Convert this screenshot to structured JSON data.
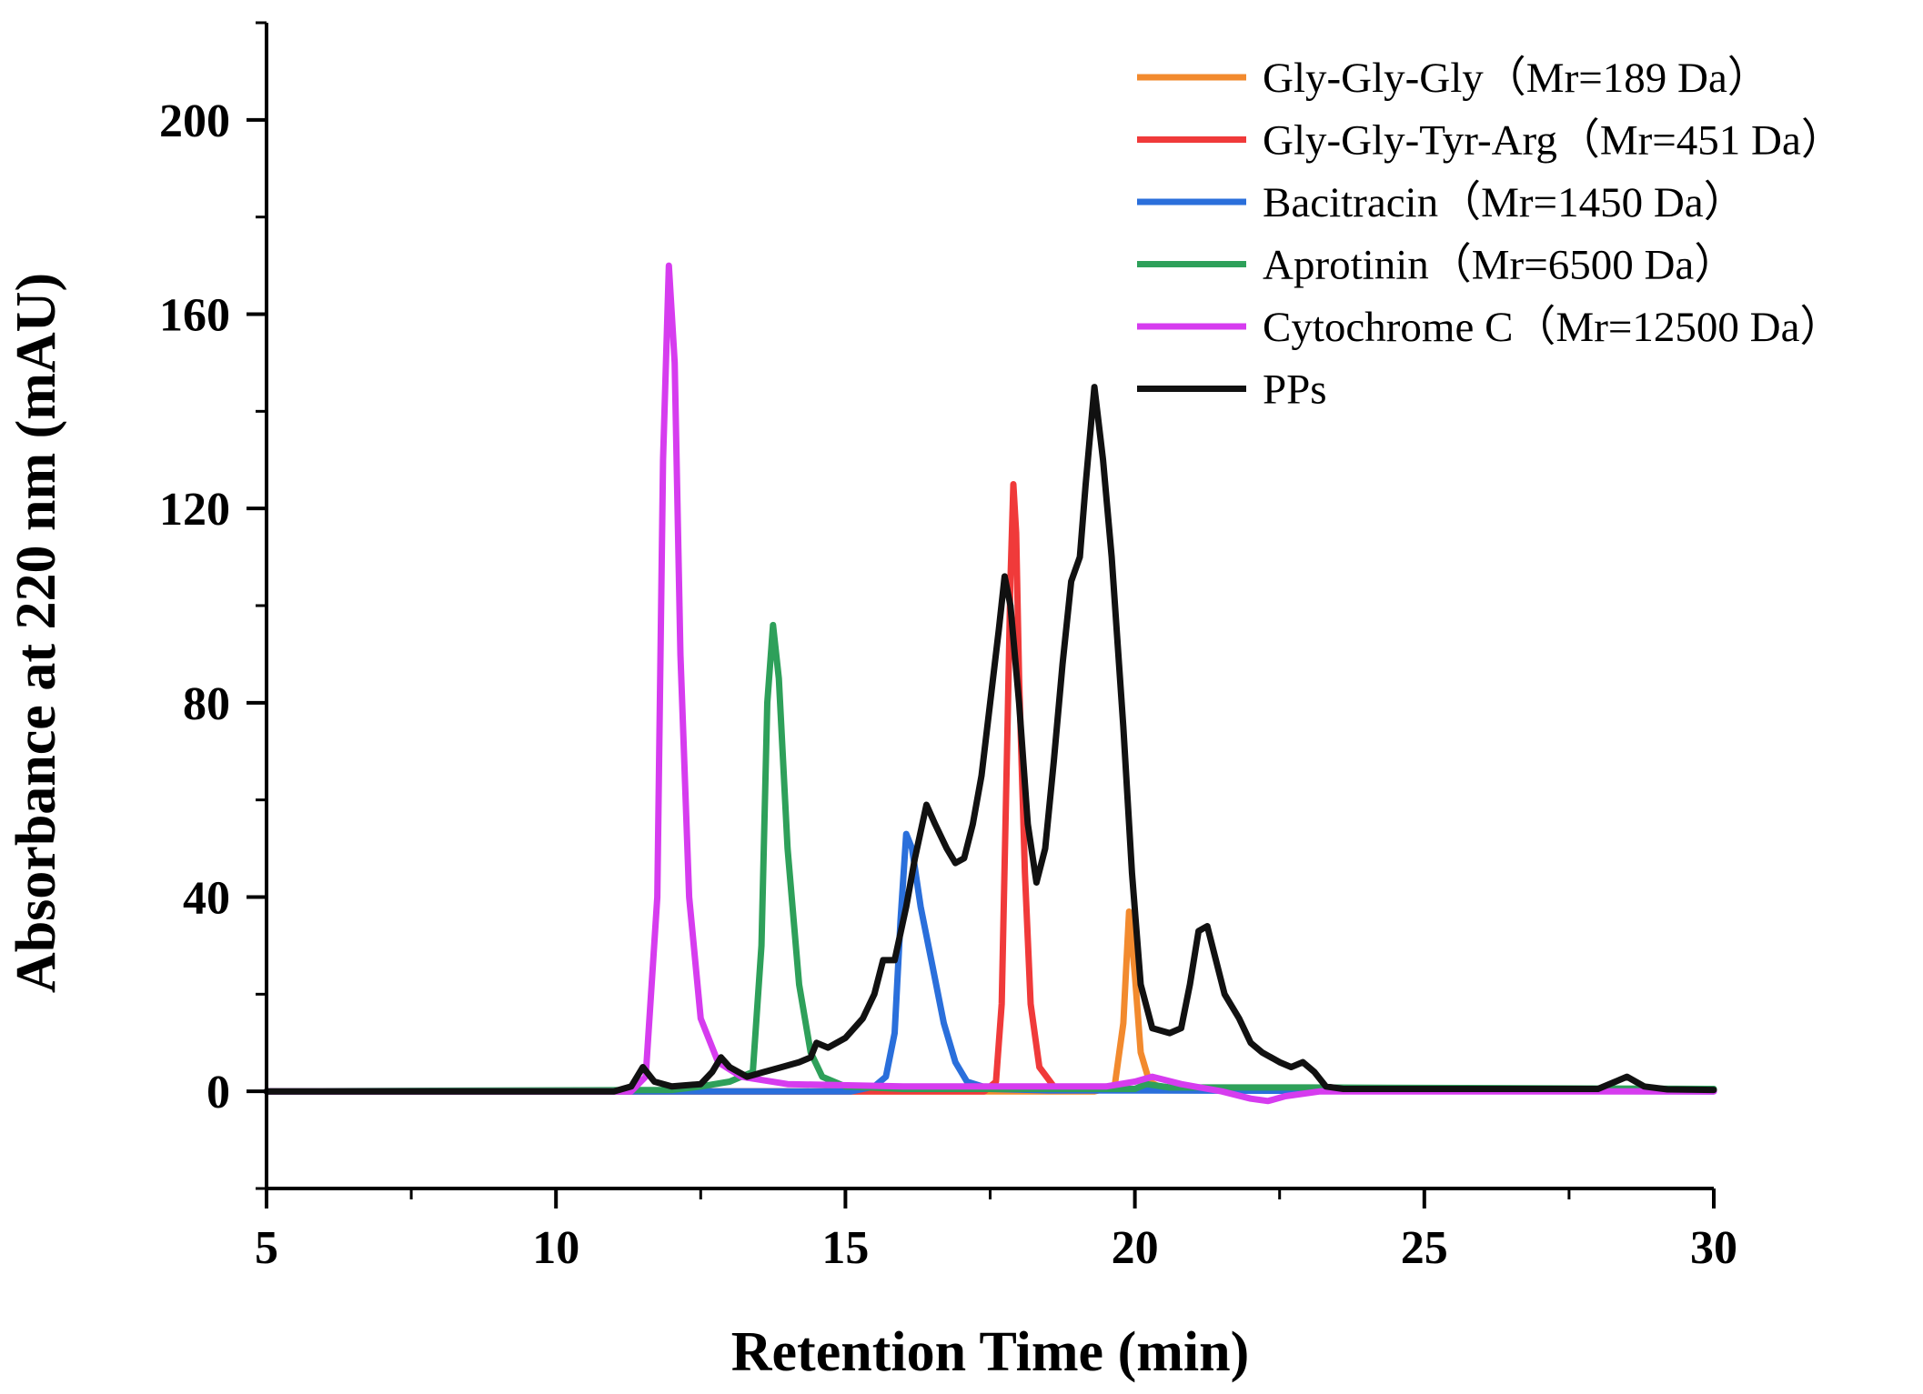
{
  "chart_data": {
    "type": "line",
    "title": "",
    "xlabel": "Retention Time (min)",
    "ylabel": "Absorbance at 220 nm (mAU)",
    "xlim": [
      5,
      30
    ],
    "ylim": [
      -20,
      220
    ],
    "xticks": [
      5,
      10,
      15,
      20,
      25,
      30
    ],
    "xticklabels": [
      "5",
      "10",
      "15",
      "20",
      "25",
      "30"
    ],
    "yticks": [
      0,
      40,
      80,
      120,
      160,
      200
    ],
    "yticklabels": [
      "0",
      "40",
      "80",
      "120",
      "160",
      "200"
    ],
    "grid": false,
    "legend_position": "top-right",
    "series": [
      {
        "name": "Gly-Gly-Gly（Mr=189 Da）",
        "color": "#F28A2E",
        "points": [
          [
            5,
            0
          ],
          [
            19.3,
            0
          ],
          [
            19.65,
            1
          ],
          [
            19.8,
            14
          ],
          [
            19.9,
            37
          ],
          [
            20.0,
            24
          ],
          [
            20.1,
            8
          ],
          [
            20.25,
            2
          ],
          [
            20.5,
            0.5
          ],
          [
            30,
            0.3
          ]
        ]
      },
      {
        "name": "Gly-Gly-Tyr-Arg（Mr=451 Da）",
        "color": "#F03A3A",
        "points": [
          [
            5,
            0
          ],
          [
            17.4,
            0
          ],
          [
            17.6,
            2
          ],
          [
            17.7,
            18
          ],
          [
            17.8,
            75
          ],
          [
            17.85,
            105
          ],
          [
            17.9,
            125
          ],
          [
            17.95,
            115
          ],
          [
            18.0,
            85
          ],
          [
            18.1,
            45
          ],
          [
            18.2,
            18
          ],
          [
            18.35,
            5
          ],
          [
            18.6,
            1
          ],
          [
            19.0,
            0.3
          ],
          [
            30,
            0.2
          ]
        ]
      },
      {
        "name": "Bacitracin（Mr=1450 Da）",
        "color": "#2A6FDB",
        "points": [
          [
            5,
            0
          ],
          [
            15.1,
            0
          ],
          [
            15.5,
            1
          ],
          [
            15.7,
            3
          ],
          [
            15.85,
            12
          ],
          [
            15.95,
            35
          ],
          [
            16.05,
            53
          ],
          [
            16.15,
            50
          ],
          [
            16.3,
            38
          ],
          [
            16.5,
            26
          ],
          [
            16.7,
            14
          ],
          [
            16.9,
            6
          ],
          [
            17.1,
            2
          ],
          [
            17.5,
            0.5
          ],
          [
            18.5,
            0.2
          ],
          [
            30,
            0
          ]
        ]
      },
      {
        "name": "Aprotinin（Mr=6500 Da）",
        "color": "#2EA05A",
        "points": [
          [
            5,
            0
          ],
          [
            12.0,
            0.3
          ],
          [
            12.5,
            1
          ],
          [
            13.0,
            2
          ],
          [
            13.4,
            4
          ],
          [
            13.55,
            30
          ],
          [
            13.65,
            80
          ],
          [
            13.75,
            96
          ],
          [
            13.85,
            85
          ],
          [
            14.0,
            50
          ],
          [
            14.2,
            22
          ],
          [
            14.4,
            8
          ],
          [
            14.6,
            3
          ],
          [
            15.0,
            1
          ],
          [
            16,
            0.5
          ],
          [
            20.0,
            0.5
          ],
          [
            20.2,
            1.5
          ],
          [
            20.6,
            0.8
          ],
          [
            23.0,
            0.8
          ],
          [
            30,
            0.5
          ]
        ]
      },
      {
        "name": "Cytochrome C（Mr=12500 Da）",
        "color": "#D63CEF",
        "points": [
          [
            5,
            0
          ],
          [
            11.3,
            0
          ],
          [
            11.55,
            3
          ],
          [
            11.75,
            40
          ],
          [
            11.85,
            130
          ],
          [
            11.95,
            170
          ],
          [
            12.05,
            150
          ],
          [
            12.15,
            90
          ],
          [
            12.3,
            40
          ],
          [
            12.5,
            15
          ],
          [
            12.8,
            6
          ],
          [
            13.2,
            3
          ],
          [
            14,
            1.5
          ],
          [
            16,
            1
          ],
          [
            18,
            1
          ],
          [
            19.5,
            1
          ],
          [
            20.0,
            2
          ],
          [
            20.3,
            3
          ],
          [
            20.8,
            1.5
          ],
          [
            21.5,
            0
          ],
          [
            22.0,
            -1.5
          ],
          [
            22.3,
            -2
          ],
          [
            22.6,
            -1
          ],
          [
            23.2,
            0
          ],
          [
            30,
            0
          ]
        ]
      },
      {
        "name": "PPs",
        "color": "#111111",
        "points": [
          [
            5,
            0
          ],
          [
            11.0,
            0
          ],
          [
            11.3,
            1
          ],
          [
            11.5,
            5
          ],
          [
            11.7,
            2
          ],
          [
            12.0,
            1
          ],
          [
            12.5,
            1.5
          ],
          [
            12.7,
            4
          ],
          [
            12.85,
            7
          ],
          [
            13.0,
            5
          ],
          [
            13.3,
            3
          ],
          [
            13.6,
            4
          ],
          [
            13.9,
            5
          ],
          [
            14.2,
            6
          ],
          [
            14.4,
            7
          ],
          [
            14.5,
            10
          ],
          [
            14.7,
            9
          ],
          [
            15.0,
            11
          ],
          [
            15.3,
            15
          ],
          [
            15.5,
            20
          ],
          [
            15.65,
            27
          ],
          [
            15.85,
            27
          ],
          [
            16.05,
            38
          ],
          [
            16.2,
            48
          ],
          [
            16.4,
            59
          ],
          [
            16.55,
            55
          ],
          [
            16.75,
            50
          ],
          [
            16.9,
            47
          ],
          [
            17.05,
            48
          ],
          [
            17.2,
            55
          ],
          [
            17.35,
            65
          ],
          [
            17.5,
            80
          ],
          [
            17.65,
            95
          ],
          [
            17.75,
            106
          ],
          [
            17.85,
            100
          ],
          [
            18.0,
            80
          ],
          [
            18.15,
            55
          ],
          [
            18.3,
            43
          ],
          [
            18.45,
            50
          ],
          [
            18.6,
            68
          ],
          [
            18.75,
            88
          ],
          [
            18.9,
            105
          ],
          [
            19.05,
            110
          ],
          [
            19.15,
            125
          ],
          [
            19.3,
            145
          ],
          [
            19.45,
            130
          ],
          [
            19.6,
            110
          ],
          [
            19.8,
            75
          ],
          [
            19.95,
            45
          ],
          [
            20.1,
            22
          ],
          [
            20.3,
            13
          ],
          [
            20.6,
            12
          ],
          [
            20.8,
            13
          ],
          [
            20.95,
            22
          ],
          [
            21.1,
            33
          ],
          [
            21.25,
            34
          ],
          [
            21.4,
            27
          ],
          [
            21.55,
            20
          ],
          [
            21.8,
            15
          ],
          [
            22.0,
            10
          ],
          [
            22.2,
            8
          ],
          [
            22.5,
            6
          ],
          [
            22.7,
            5
          ],
          [
            22.9,
            6
          ],
          [
            23.1,
            4
          ],
          [
            23.3,
            1
          ],
          [
            23.6,
            0.5
          ],
          [
            25,
            0.5
          ],
          [
            26,
            0.5
          ],
          [
            28.0,
            0.5
          ],
          [
            28.3,
            2
          ],
          [
            28.5,
            3
          ],
          [
            28.8,
            1
          ],
          [
            29.2,
            0.4
          ],
          [
            30,
            0.3
          ]
        ]
      }
    ]
  }
}
